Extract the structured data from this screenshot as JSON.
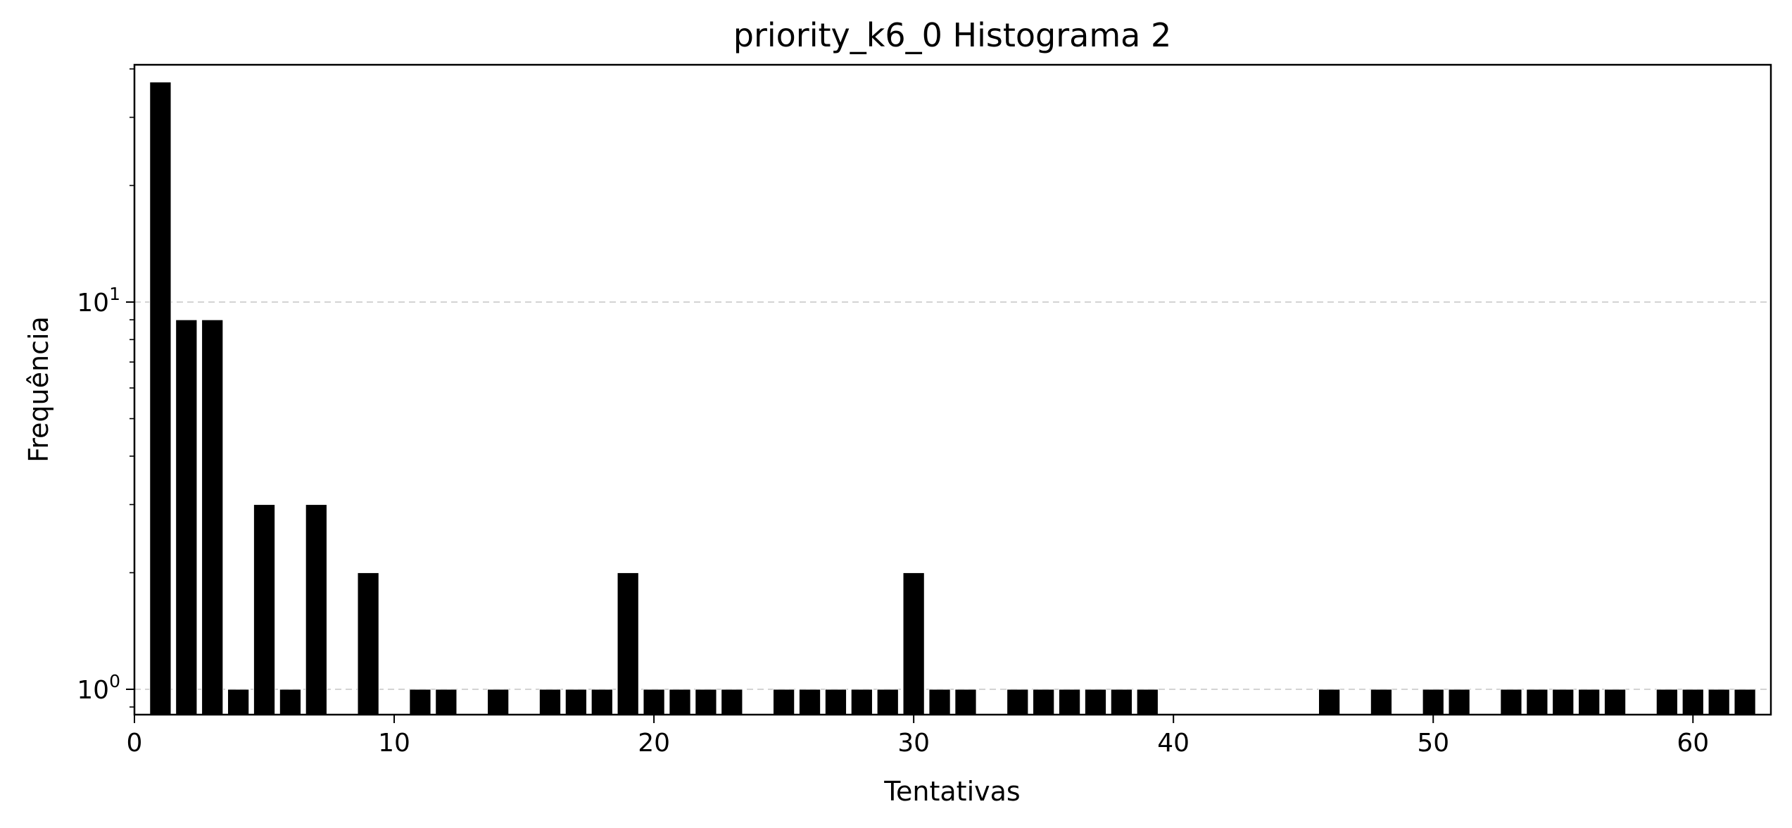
{
  "chart_data": {
    "type": "bar",
    "title": "priority_k6_0 Histograma 2",
    "xlabel": "Tentativas",
    "ylabel": "Frequência",
    "xlim": [
      0,
      63
    ],
    "ylim": [
      0.86,
      41
    ],
    "yscale": "log",
    "x_ticks": [
      "0",
      "10",
      "20",
      "30",
      "40",
      "50",
      "60"
    ],
    "y_ticks": [
      {
        "base": "10",
        "exp": "0"
      },
      {
        "base": "10",
        "exp": "1"
      }
    ],
    "grid": "y-major dashed",
    "x": [
      1,
      2,
      3,
      4,
      5,
      6,
      7,
      9,
      11,
      12,
      14,
      16,
      17,
      18,
      19,
      20,
      21,
      22,
      23,
      25,
      26,
      27,
      28,
      29,
      30,
      31,
      32,
      34,
      35,
      36,
      37,
      38,
      39,
      46,
      48,
      50,
      51,
      53,
      54,
      55,
      56,
      57,
      59,
      60,
      61,
      62
    ],
    "values": [
      37,
      9,
      9,
      1,
      3,
      1,
      3,
      2,
      1,
      1,
      1,
      1,
      1,
      1,
      2,
      1,
      1,
      1,
      1,
      1,
      1,
      1,
      1,
      1,
      2,
      1,
      1,
      1,
      1,
      1,
      1,
      1,
      1,
      1,
      1,
      1,
      1,
      1,
      1,
      1,
      1,
      1,
      1,
      1,
      1,
      1
    ],
    "bar_color": "#000000",
    "bar_edge_color": "#ffffff",
    "grid_color": "#d3d3d3"
  }
}
